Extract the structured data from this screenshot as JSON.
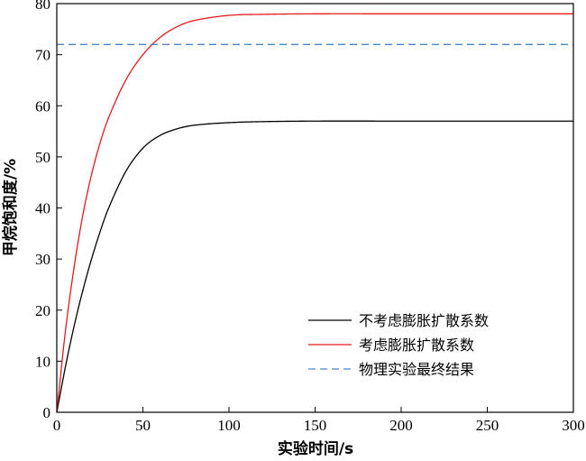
{
  "chart_data": {
    "type": "line",
    "title": "",
    "xlabel": "实验时间/s",
    "ylabel": "甲烷饱和度/%",
    "xlim": [
      0,
      300
    ],
    "ylim": [
      0,
      80
    ],
    "xticks": [
      0,
      50,
      100,
      150,
      200,
      250,
      300
    ],
    "yticks": [
      0,
      10,
      20,
      30,
      40,
      50,
      60,
      70,
      80
    ],
    "grid": false,
    "legend_position": "bottom-right",
    "series": [
      {
        "name": "不考虑膨胀扩散系数",
        "color": "#000000",
        "style": "solid",
        "x": [
          0,
          5,
          10,
          15,
          20,
          25,
          30,
          40,
          50,
          60,
          70,
          80,
          100,
          120,
          150,
          200,
          250,
          300
        ],
        "values": [
          0,
          8.9,
          16.8,
          23.7,
          29.8,
          35.2,
          39.9,
          47.1,
          51.7,
          54.2,
          55.5,
          56.2,
          56.7,
          56.9,
          57,
          57,
          57,
          57
        ]
      },
      {
        "name": "考虑膨胀扩散系数",
        "color": "#e41a1c",
        "style": "solid",
        "x": [
          0,
          5,
          10,
          15,
          20,
          25,
          30,
          40,
          50,
          60,
          70,
          80,
          100,
          120,
          150,
          200,
          250,
          300
        ],
        "values": [
          0,
          15.9,
          28.3,
          38.4,
          46.3,
          52.6,
          57.6,
          65.0,
          70.0,
          73.4,
          75.5,
          76.7,
          77.7,
          77.9,
          78,
          78,
          78,
          78
        ]
      },
      {
        "name": "物理实验最终结果",
        "color": "#4a86c5",
        "style": "dashed",
        "x": [
          0,
          300
        ],
        "values": [
          72,
          72
        ]
      }
    ]
  }
}
